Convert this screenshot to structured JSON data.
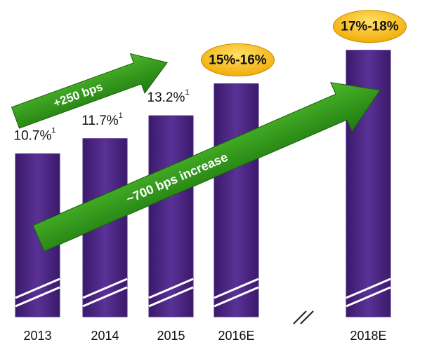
{
  "chart_data": {
    "type": "bar",
    "categories": [
      "2013",
      "2014",
      "2015",
      "2016E",
      "2018E"
    ],
    "values": [
      10.7,
      11.7,
      13.2,
      15.3,
      17.5
    ],
    "value_labels": [
      "10.7%",
      "11.7%",
      "13.2%",
      "15%-16%",
      "17%-18%"
    ],
    "footnote_marks": [
      "1",
      "1",
      "1",
      null,
      null
    ],
    "color": "#4b2582",
    "ylim": [
      0,
      20.8
    ],
    "annotations": [
      "+250 bps",
      "~700 bps increase"
    ]
  }
}
